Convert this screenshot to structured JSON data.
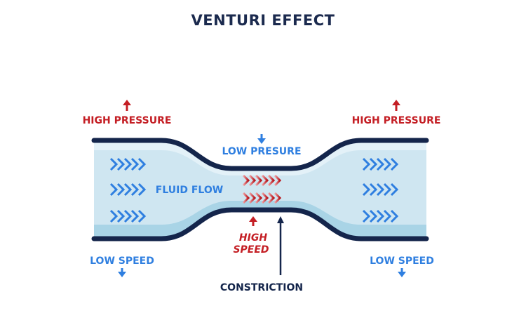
{
  "title": "VENTURI EFFECT",
  "labels": {
    "high_pressure_left": "HIGH PRESSURE",
    "high_pressure_right": "HIGH PRESSURE",
    "low_pressure": "LOW PRESURE",
    "fluid_flow": "FLUID FLOW",
    "high_speed_line1": "HIGH",
    "high_speed_line2": "SPEED",
    "low_speed_left": "LOW SPEED",
    "low_speed_right": "LOW SPEED",
    "constriction": "CONSTRICTION"
  },
  "colors": {
    "pipe_wall": "#14254b",
    "fluid_light": "#e3f1f8",
    "fluid_mid": "#cfe6f1",
    "fluid_deep": "#a9d4e6",
    "flow_arrow_blue": "#2f7fe0",
    "high_arrow_red": "#c41e24",
    "pressure_red": "#c41e24",
    "speed_blue": "#2f7fe0"
  },
  "icons": {
    "flow_arrows": "chevron-right-icon",
    "pressure_up": "arrow-up-icon",
    "pressure_down": "arrow-down-icon",
    "speed_down": "arrow-down-icon",
    "constriction_pointer": "arrow-up-icon"
  }
}
